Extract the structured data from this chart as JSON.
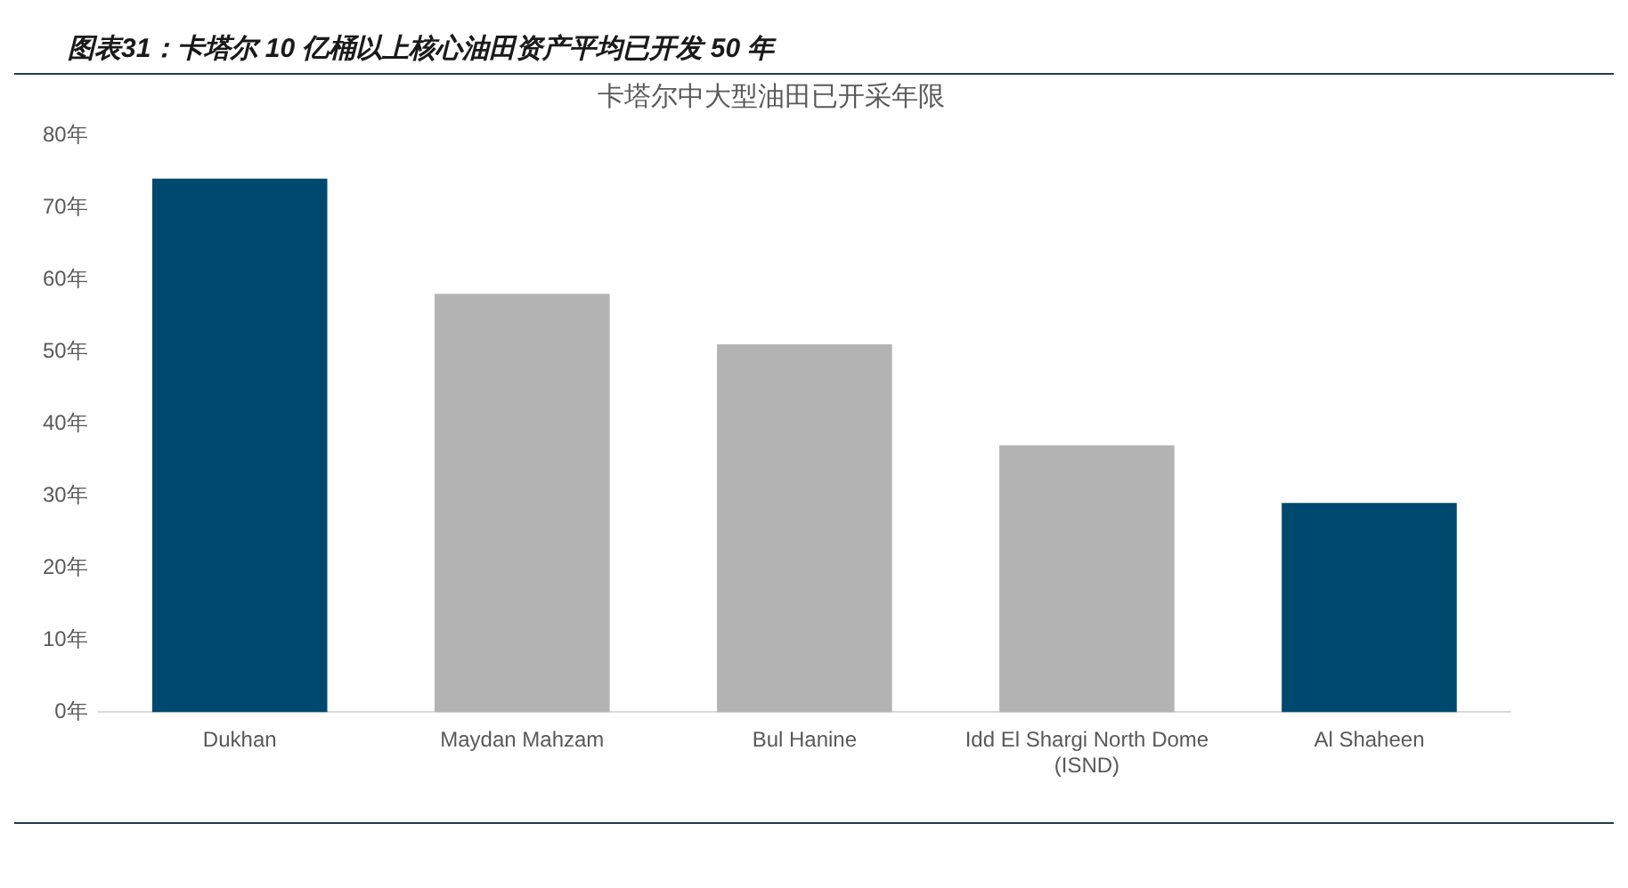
{
  "chart_data": {
    "type": "bar",
    "title": "图表31：卡塔尔 10 亿桶以上核心油田资产平均已开发 50 年",
    "subtitle": "卡塔尔中大型油田已开采年限",
    "categories": [
      "Dukhan",
      "Maydan Mahzam",
      "Bul Hanine",
      "Idd El Shargi North Dome (ISND)",
      "Al Shaheen"
    ],
    "values": [
      74,
      58,
      51,
      37,
      29
    ],
    "colors": [
      "#00496e",
      "#b3b3b3",
      "#b3b3b3",
      "#b3b3b3",
      "#00496e"
    ],
    "ylim": [
      0,
      80
    ],
    "yticks": [
      {
        "value": 0,
        "label": "0年"
      },
      {
        "value": 10,
        "label": "10年"
      },
      {
        "value": 20,
        "label": "20年"
      },
      {
        "value": 30,
        "label": "30年"
      },
      {
        "value": 40,
        "label": "40年"
      },
      {
        "value": 50,
        "label": "50年"
      },
      {
        "value": 60,
        "label": "60年"
      },
      {
        "value": 70,
        "label": "70年"
      },
      {
        "value": 80,
        "label": "80年"
      }
    ],
    "grid": false,
    "legend": false
  }
}
